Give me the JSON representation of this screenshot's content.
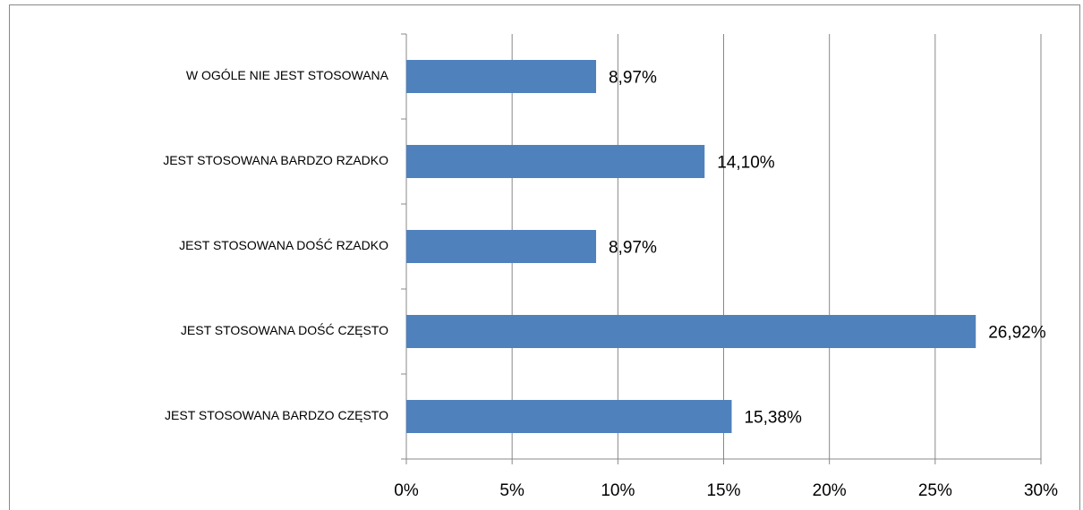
{
  "chart_data": {
    "type": "bar",
    "orientation": "horizontal",
    "categories": [
      "W OGÓLE NIE JEST STOSOWANA",
      "JEST STOSOWANA BARDZO RZADKO",
      "JEST STOSOWANA DOŚĆ RZADKO",
      "JEST STOSOWANA DOŚĆ CZĘSTO",
      "JEST STOSOWANA BARDZO CZĘSTO"
    ],
    "values": [
      8.97,
      14.1,
      8.97,
      26.92,
      15.38
    ],
    "value_labels": [
      "8,97%",
      "14,10%",
      "8,97%",
      "26,92%",
      "15,38%"
    ],
    "color": "#4f81bd",
    "xlim": [
      0,
      30
    ],
    "xticks": [
      {
        "value": 0,
        "label": "0%"
      },
      {
        "value": 5,
        "label": "5%"
      },
      {
        "value": 10,
        "label": "10%"
      },
      {
        "value": 15,
        "label": "15%"
      },
      {
        "value": 20,
        "label": "20%"
      },
      {
        "value": 25,
        "label": "25%"
      },
      {
        "value": 30,
        "label": "30%"
      }
    ],
    "grid": true
  }
}
